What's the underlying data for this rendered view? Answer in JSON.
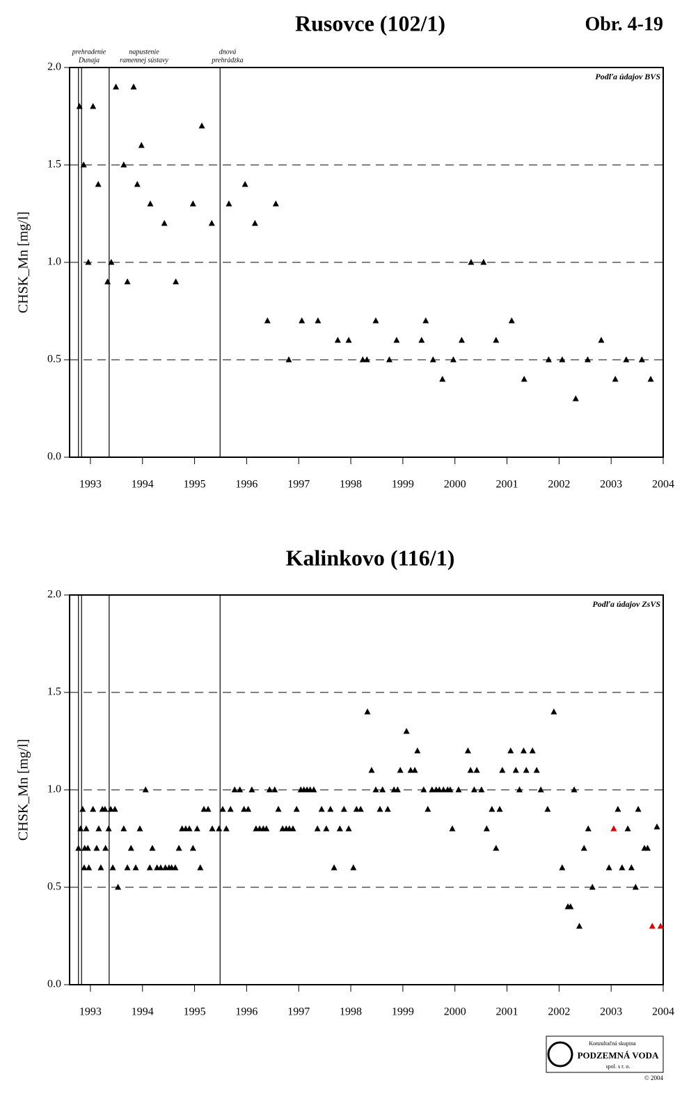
{
  "chart_data": [
    {
      "type": "scatter",
      "title": "Rusovce (102/1)",
      "figure_label": "Obr. 4-19",
      "y_label": "CHSK_Mn [mg/l]",
      "annotation": "Podľa údajov BVS",
      "xlim": [
        1992.6,
        2004
      ],
      "xticks": [
        1993,
        1994,
        1995,
        1996,
        1997,
        1998,
        1999,
        2000,
        2001,
        2002,
        2003,
        2004
      ],
      "ylim": [
        0,
        2
      ],
      "yticks": [
        {
          "value": 0,
          "label": "0.0"
        },
        0.5,
        {
          "value": 1,
          "label": "1.0"
        },
        1.5,
        {
          "value": 2,
          "label": "2.0"
        }
      ],
      "grid": true,
      "marker": "triangle",
      "event_lines": [
        1992.77,
        1992.83,
        1993.36,
        1995.49
      ],
      "event_labels": [
        [
          "prehradenie",
          "Dunaja"
        ],
        [
          "napustenie",
          "ramennej sústavy"
        ],
        [
          "dnová",
          "prehrádzka"
        ]
      ],
      "series": [
        {
          "color": "#000000",
          "x": [
            1992.79,
            1992.87,
            1992.96,
            1993.05,
            1993.15,
            1993.33,
            1993.4,
            1993.49,
            1993.64,
            1993.71,
            1993.83,
            1993.9,
            1993.98,
            1994.15,
            1994.42,
            1994.64,
            1994.97,
            1995.14,
            1995.33,
            1995.66,
            1995.97,
            1996.16,
            1996.4,
            1996.56,
            1996.81,
            1997.06,
            1997.37,
            1997.75,
            1997.96,
            1998.23,
            1998.31,
            1998.48,
            1998.74,
            1998.88,
            1999.36,
            1999.44,
            1999.58,
            1999.76,
            1999.97,
            2000.13,
            2000.31,
            2000.55,
            2000.79,
            2001.09,
            2001.33,
            2001.8,
            2002.06,
            2002.32,
            2002.55,
            2002.81,
            2003.08,
            2003.29,
            2003.59,
            2003.76
          ],
          "values": [
            1.8,
            1.5,
            1.0,
            1.8,
            1.4,
            0.9,
            1.0,
            1.9,
            1.5,
            0.9,
            1.9,
            1.4,
            1.6,
            1.3,
            1.2,
            0.9,
            1.3,
            1.7,
            1.2,
            1.3,
            1.4,
            1.2,
            0.7,
            1.3,
            0.5,
            0.7,
            0.7,
            0.6,
            0.6,
            0.5,
            0.5,
            0.7,
            0.5,
            0.6,
            0.6,
            0.7,
            0.5,
            0.4,
            0.5,
            0.6,
            1.0,
            1.0,
            0.6,
            0.7,
            0.4,
            0.5,
            0.5,
            0.3,
            0.5,
            0.6,
            0.4,
            0.5,
            0.5,
            0.4
          ]
        }
      ]
    },
    {
      "type": "scatter",
      "title": "Kalinkovo (116/1)",
      "y_label": "CHSK_Mn [mg/l]",
      "annotation": "Podľa údajov ZsVS",
      "xlim": [
        1992.6,
        2004
      ],
      "xticks": [
        1993,
        1994,
        1995,
        1996,
        1997,
        1998,
        1999,
        2000,
        2001,
        2002,
        2003,
        2004
      ],
      "ylim": [
        0,
        2
      ],
      "yticks": [
        {
          "value": 0,
          "label": "0.0"
        },
        0.5,
        {
          "value": 1,
          "label": "1.0"
        },
        1.5,
        {
          "value": 2,
          "label": "2.0"
        }
      ],
      "grid": true,
      "marker": "triangle",
      "event_lines": [
        1992.77,
        1992.83,
        1993.36,
        1995.49
      ],
      "series": [
        {
          "color": "#000000",
          "x": [
            1992.77,
            1992.81,
            1992.85,
            1992.88,
            1992.89,
            1992.92,
            1992.95,
            1992.97,
            1993.05,
            1993.12,
            1993.16,
            1993.2,
            1993.23,
            1993.28,
            1993.29,
            1993.35,
            1993.39,
            1993.43,
            1993.47,
            1993.53,
            1993.64,
            1993.71,
            1993.78,
            1993.87,
            1993.95,
            1994.06,
            1994.14,
            1994.19,
            1994.28,
            1994.35,
            1994.44,
            1994.51,
            1994.56,
            1994.63,
            1994.7,
            1994.76,
            1994.83,
            1994.9,
            1994.97,
            1995.05,
            1995.11,
            1995.18,
            1995.26,
            1995.34,
            1995.47,
            1995.54,
            1995.61,
            1995.69,
            1995.77,
            1995.87,
            1995.95,
            1996.03,
            1996.1,
            1996.18,
            1996.25,
            1996.32,
            1996.38,
            1996.44,
            1996.54,
            1996.61,
            1996.69,
            1996.76,
            1996.82,
            1996.89,
            1996.96,
            1997.04,
            1997.1,
            1997.16,
            1997.22,
            1997.29,
            1997.36,
            1997.44,
            1997.53,
            1997.61,
            1997.68,
            1997.79,
            1997.87,
            1997.96,
            1998.05,
            1998.11,
            1998.19,
            1998.32,
            1998.4,
            1998.48,
            1998.56,
            1998.61,
            1998.71,
            1998.83,
            1998.9,
            1998.95,
            1999.07,
            1999.15,
            1999.23,
            1999.28,
            1999.4,
            1999.48,
            1999.56,
            1999.64,
            1999.7,
            1999.78,
            1999.86,
            1999.91,
            1999.95,
            2000.07,
            2000.25,
            2000.3,
            2000.37,
            2000.42,
            2000.51,
            2000.61,
            2000.71,
            2000.79,
            2000.86,
            2000.91,
            2001.07,
            2001.17,
            2001.24,
            2001.32,
            2001.37,
            2001.49,
            2001.57,
            2001.65,
            2001.78,
            2001.9,
            2002.06,
            2002.17,
            2002.22,
            2002.29,
            2002.39,
            2002.48,
            2002.56,
            2002.64,
            2002.96,
            2003.13,
            2003.21,
            2003.32,
            2003.39,
            2003.47,
            2003.52,
            2003.64,
            2003.7,
            2003.88
          ],
          "values": [
            0.7,
            0.8,
            0.9,
            0.6,
            0.7,
            0.8,
            0.7,
            0.6,
            0.9,
            0.7,
            0.8,
            0.6,
            0.9,
            0.9,
            0.7,
            0.8,
            0.9,
            0.6,
            0.9,
            0.5,
            0.8,
            0.6,
            0.7,
            0.6,
            0.8,
            1.0,
            0.6,
            0.7,
            0.6,
            0.6,
            0.6,
            0.6,
            0.6,
            0.6,
            0.7,
            0.8,
            0.8,
            0.8,
            0.7,
            0.8,
            0.6,
            0.9,
            0.9,
            0.8,
            0.8,
            0.9,
            0.8,
            0.9,
            1.0,
            1.0,
            0.9,
            0.9,
            1.0,
            0.8,
            0.8,
            0.8,
            0.8,
            1.0,
            1.0,
            0.9,
            0.8,
            0.8,
            0.8,
            0.8,
            0.9,
            1.0,
            1.0,
            1.0,
            1.0,
            1.0,
            0.8,
            0.9,
            0.8,
            0.9,
            0.6,
            0.8,
            0.9,
            0.8,
            0.6,
            0.9,
            0.9,
            1.4,
            1.1,
            1.0,
            0.9,
            1.0,
            0.9,
            1.0,
            1.0,
            1.1,
            1.3,
            1.1,
            1.1,
            1.2,
            1.0,
            0.9,
            1.0,
            1.0,
            1.0,
            1.0,
            1.0,
            1.0,
            0.8,
            1.0,
            1.2,
            1.1,
            1.0,
            1.1,
            1.0,
            0.8,
            0.9,
            0.7,
            0.9,
            1.1,
            1.2,
            1.1,
            1.0,
            1.2,
            1.1,
            1.2,
            1.1,
            1.0,
            0.9,
            1.4,
            0.6,
            0.4,
            0.4,
            1.0,
            0.3,
            0.7,
            0.8,
            0.5,
            0.6,
            0.9,
            0.6,
            0.8,
            0.6,
            0.5,
            0.9,
            0.7,
            0.7,
            0.81
          ]
        },
        {
          "color": "#e00000",
          "x": [
            2003.05,
            2003.79,
            2003.95
          ],
          "values": [
            0.8,
            0.3,
            0.3
          ]
        }
      ]
    }
  ],
  "footer": {
    "group": "Konzultačná skupina",
    "company": "PODZEMNÁ VODA",
    "company_form": "spol. s r. o.",
    "copyright": "© 2004"
  }
}
